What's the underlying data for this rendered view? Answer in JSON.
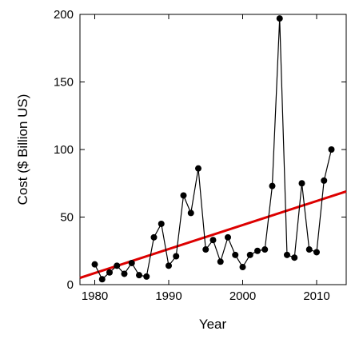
{
  "chart_data": {
    "type": "scatter",
    "title": "",
    "xlabel": "Year",
    "ylabel": "Cost ($ Billion US)",
    "xlim": [
      1978,
      2014
    ],
    "ylim": [
      0,
      200
    ],
    "x_ticks": [
      1980,
      1990,
      2000,
      2010
    ],
    "y_ticks": [
      0,
      50,
      100,
      150,
      200
    ],
    "grid": false,
    "legend": "none",
    "series": [
      {
        "type": "line-with-markers",
        "color": "#000000",
        "x": [
          1980,
          1981,
          1982,
          1983,
          1984,
          1985,
          1986,
          1987,
          1988,
          1989,
          1990,
          1991,
          1992,
          1993,
          1994,
          1995,
          1996,
          1997,
          1998,
          1999,
          2000,
          2001,
          2002,
          2003,
          2004,
          2005,
          2006,
          2007,
          2008,
          2009,
          2010,
          2011,
          2012
        ],
        "y": [
          15,
          4,
          9,
          14,
          8,
          16,
          7,
          6,
          35,
          45,
          14,
          21,
          66,
          53,
          86,
          26,
          33,
          17,
          35,
          22,
          13,
          22,
          25,
          26,
          73,
          197,
          22,
          20,
          75,
          26,
          24,
          77,
          100
        ]
      },
      {
        "type": "trend-line",
        "color": "#dd0000",
        "x": [
          1978,
          2014
        ],
        "y": [
          5,
          69
        ]
      }
    ]
  }
}
